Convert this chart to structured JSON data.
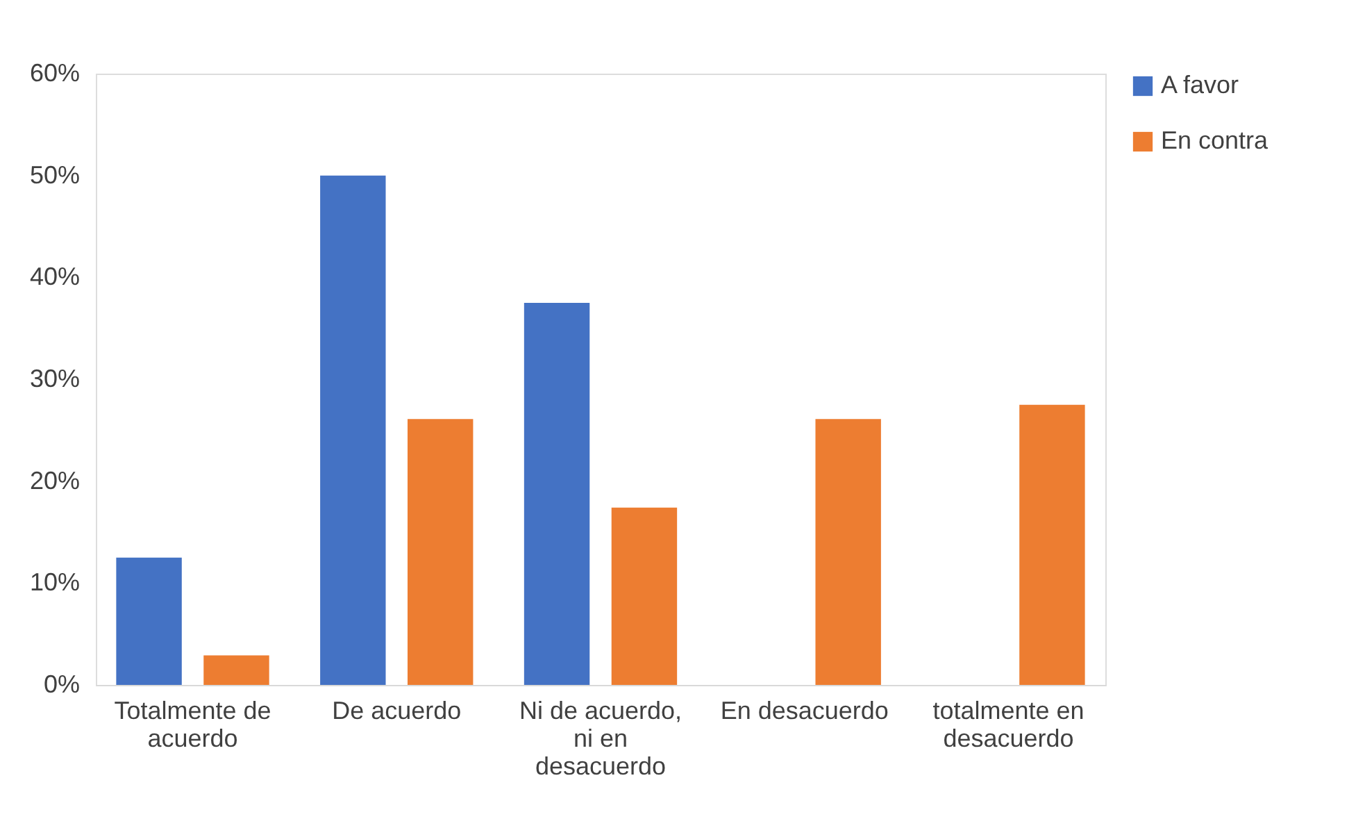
{
  "chart_data": {
    "type": "bar",
    "categories": [
      "Totalmente de acuerdo",
      "De acuerdo",
      "Ni de acuerdo, ni en desacuerdo",
      "En desacuerdo",
      "totalmente en desacuerdo"
    ],
    "series": [
      {
        "name": "A favor",
        "color": "#4472c4",
        "values": [
          12.5,
          50,
          37.5,
          null,
          null
        ]
      },
      {
        "name": "En contra",
        "color": "#ed7d31",
        "values": [
          2.9,
          26.1,
          17.4,
          26.1,
          27.5
        ]
      }
    ],
    "ylim": [
      0,
      60
    ],
    "yticks": [
      {
        "value": 0,
        "label": "0%"
      },
      {
        "value": 10,
        "label": "10%"
      },
      {
        "value": 20,
        "label": "20%"
      },
      {
        "value": 30,
        "label": "30%"
      },
      {
        "value": 40,
        "label": "40%"
      },
      {
        "value": 50,
        "label": "50%"
      },
      {
        "value": 60,
        "label": "60%"
      }
    ],
    "grid": false,
    "legend": "right"
  }
}
